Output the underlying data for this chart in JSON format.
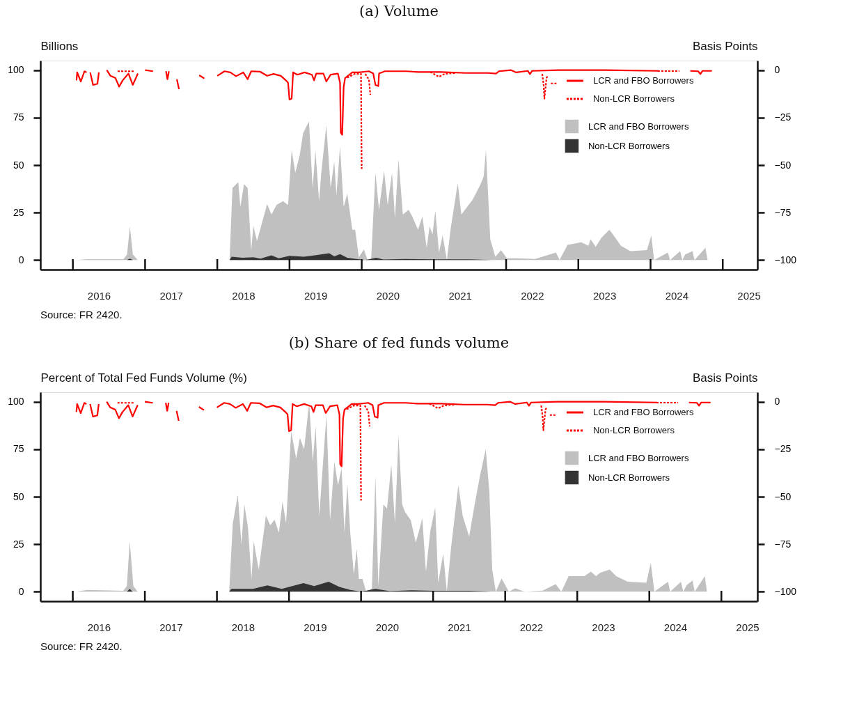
{
  "chart_data": [
    {
      "type": "area",
      "title": "(a) Volume",
      "ylabel": "Billions",
      "y2label": "Basis Points",
      "annotations": [
        "Source: FR 2420."
      ],
      "xlim": [
        2015.55,
        2025.48
      ],
      "ylim": [
        -5,
        105
      ],
      "y2lim": [
        -105,
        5
      ],
      "yticks": [
        0,
        25,
        50,
        75,
        100
      ],
      "y2ticks": [
        -100,
        -75,
        -50,
        -25,
        0
      ],
      "xticks": [
        {
          "value": 2016,
          "label": null
        },
        {
          "value": 2017,
          "label": null
        },
        {
          "value": 2018,
          "label": null
        },
        {
          "value": 2019,
          "label": null
        },
        {
          "value": 2020,
          "label": null
        },
        {
          "value": 2021,
          "label": null
        },
        {
          "value": 2022,
          "label": null
        },
        {
          "value": 2023,
          "label": null
        },
        {
          "value": 2024,
          "label": null
        },
        {
          "value": 2025,
          "label": null
        },
        {
          "value": 2016.36,
          "label": "2016"
        },
        {
          "value": 2017.36,
          "label": "2017"
        },
        {
          "value": 2018.36,
          "label": "2018"
        },
        {
          "value": 2019.36,
          "label": "2019"
        },
        {
          "value": 2020.36,
          "label": "2020"
        },
        {
          "value": 2021.36,
          "label": "2021"
        },
        {
          "value": 2022.36,
          "label": "2022"
        },
        {
          "value": 2023.36,
          "label": "2023"
        },
        {
          "value": 2024.36,
          "label": "2024"
        },
        {
          "value": 2025.36,
          "label": "2025"
        }
      ],
      "grid": false,
      "legend": "top right",
      "series": [
        {
          "name": "LCR and FBO Borrowers",
          "type": "area",
          "color": "#c0c0c0",
          "x": [
            2016.05,
            2016.2,
            2016.7,
            2016.75,
            2016.79,
            2016.83,
            2016.9,
            2018.17,
            2018.21,
            2018.29,
            2018.32,
            2018.37,
            2018.42,
            2018.47,
            2018.5,
            2018.55,
            2018.69,
            2018.75,
            2018.82,
            2018.91,
            2018.98,
            2019.03,
            2019.08,
            2019.14,
            2019.19,
            2019.27,
            2019.32,
            2019.36,
            2019.41,
            2019.44,
            2019.51,
            2019.57,
            2019.62,
            2019.65,
            2019.7,
            2019.75,
            2019.8,
            2019.87,
            2019.91,
            2019.96,
            2020.03,
            2020.08,
            2020.13,
            2020.19,
            2020.24,
            2020.31,
            2020.36,
            2020.42,
            2020.46,
            2020.51,
            2020.57,
            2020.65,
            2020.7,
            2020.78,
            2020.84,
            2020.9,
            2020.94,
            2020.98,
            2021.02,
            2021.07,
            2021.12,
            2021.18,
            2021.23,
            2021.33,
            2021.38,
            2021.54,
            2021.64,
            2021.69,
            2021.72,
            2021.75,
            2021.78,
            2021.85,
            2021.93,
            2022.01,
            2022.14,
            2022.4,
            2022.69,
            2022.74,
            2022.85,
            2023.04,
            2023.14,
            2023.17,
            2023.24,
            2023.32,
            2023.43,
            2023.5,
            2023.59,
            2023.72,
            2023.95,
            2024.01,
            2024.05,
            2024.24,
            2024.27,
            2024.41,
            2024.44,
            2024.48,
            2024.58,
            2024.61,
            2024.76,
            2024.79,
            2024.85
          ],
          "values": [
            0,
            0.5,
            0.5,
            3,
            17.6,
            3,
            0,
            0,
            38,
            41,
            28,
            40,
            38,
            5,
            18,
            10,
            29.5,
            24,
            29,
            31,
            29,
            58,
            46,
            55,
            67,
            73,
            38,
            57.6,
            31,
            46,
            71,
            38,
            52,
            34,
            60,
            28,
            35,
            16,
            16,
            1.4,
            5.6,
            0.2,
            0,
            46,
            26.5,
            47,
            29,
            46,
            22,
            53,
            24,
            26.5,
            23,
            16,
            23,
            6.5,
            17.7,
            13.5,
            26,
            4,
            13,
            0,
            16,
            40.6,
            24,
            32,
            39.5,
            44,
            58,
            35,
            11,
            1.8,
            5.3,
            1,
            1,
            0.6,
            4,
            0,
            8,
            9.4,
            7.6,
            11,
            7,
            11.8,
            16,
            12.4,
            7.6,
            4.7,
            5.3,
            13,
            0,
            4,
            0,
            4.7,
            0,
            3,
            4.7,
            0,
            6.5,
            0,
            0
          ]
        },
        {
          "name": "Non-LCR Borrowers",
          "type": "area",
          "color": "#333333",
          "x": [
            2016.05,
            2016.75,
            2016.79,
            2016.83,
            2018.17,
            2018.2,
            2018.35,
            2018.5,
            2018.6,
            2018.75,
            2018.85,
            2019.0,
            2019.2,
            2019.35,
            2019.55,
            2019.62,
            2019.7,
            2019.8,
            2019.95,
            2020.05,
            2020.2,
            2020.3,
            2020.6,
            2021.0,
            2021.5,
            2021.8,
            2024.85
          ],
          "values": [
            0,
            0,
            0.8,
            0,
            0,
            1.8,
            1.2,
            1.5,
            0.8,
            2.5,
            1,
            2.2,
            1.8,
            2.5,
            3.6,
            2,
            3.2,
            1.2,
            0.5,
            0,
            1.2,
            0.3,
            0.6,
            0.4,
            0.4,
            0,
            0
          ]
        },
        {
          "name": "LCR and FBO Borrowers",
          "type": "line",
          "axis": "y2",
          "color": "#ff0000",
          "line_style": "solid",
          "x": [
            2016.05,
            2016.06,
            2016.11,
            2016.16,
            2016.19,
            2016.21,
            2016.24,
            2016.28,
            2016.34,
            2016.36,
            2016.41,
            2016.47,
            2016.52,
            2016.59,
            2016.64,
            2016.69,
            2016.77,
            2016.83,
            2016.9,
            2016.95,
            2017.0,
            2017.11,
            2017.2,
            2017.29,
            2017.31,
            2017.33,
            2017.38,
            2017.44,
            2017.47,
            2017.6,
            2017.75,
            2017.82,
            2017.9,
            2018.0,
            2018.1,
            2018.18,
            2018.26,
            2018.36,
            2018.42,
            2018.47,
            2018.59,
            2018.69,
            2018.78,
            2018.88,
            2018.95,
            2018.98,
            2019.0,
            2019.03,
            2019.05,
            2019.11,
            2019.21,
            2019.31,
            2019.34,
            2019.37,
            2019.47,
            2019.51,
            2019.57,
            2019.67,
            2019.7,
            2019.71,
            2019.73,
            2019.75,
            2019.77,
            2019.87,
            2019.96,
            2020.1,
            2020.16,
            2020.19,
            2020.23,
            2020.24,
            2020.32,
            2020.62,
            2020.78,
            2021.1,
            2021.43,
            2021.75,
            2021.86,
            2021.9,
            2022.07,
            2022.14,
            2022.3,
            2022.33,
            2022.36,
            2022.72,
            2023.37,
            2024.11,
            2024.2,
            2024.55,
            2024.66,
            2024.69,
            2024.72,
            2024.85
          ],
          "values": [
            -5.4,
            -1.2,
            -6,
            -0.6,
            -1.2,
            null,
            -1.2,
            -7.8,
            -7.2,
            -1.2,
            null,
            0,
            -3,
            -4.2,
            -8.7,
            -5.4,
            -1.8,
            -7.8,
            -1.8,
            null,
            0,
            -0.6,
            null,
            -0.6,
            -4.8,
            -0.6,
            null,
            -4.8,
            -10,
            null,
            -2.7,
            -4.4,
            null,
            -3,
            -0.6,
            -1.2,
            -3.2,
            -1.2,
            -4.8,
            -0.6,
            -0.8,
            -3,
            -2,
            -3,
            -5.4,
            -6.6,
            -15.5,
            -15,
            -1.2,
            -2.4,
            -1.2,
            -2.4,
            -5.4,
            -1.8,
            -1.8,
            -6,
            -2.4,
            -1.8,
            -6.6,
            -32.9,
            -34,
            -9,
            -4.2,
            -1.2,
            -1.2,
            -0.6,
            -1.8,
            -7.8,
            -8.4,
            -1.8,
            -0.6,
            -0.6,
            -1,
            -1,
            -1.5,
            -1.5,
            -1.8,
            -0.6,
            0,
            -1.2,
            -0.4,
            -2.1,
            -0.4,
            0,
            0,
            -0.4,
            null,
            -0.4,
            -0.6,
            -2.1,
            -0.4,
            -0.4
          ]
        },
        {
          "name": "Non-LCR Borrowers",
          "type": "line",
          "axis": "y2",
          "color": "#fe0000",
          "line_style": "dashed",
          "x": [
            2016.62,
            2016.85,
            2016.9,
            2019.8,
            2019.9,
            2019.99,
            2020.0,
            2020.02,
            2020.05,
            2020.1,
            2020.12,
            2020.15,
            2020.95,
            2021.07,
            2021.15,
            2021.3,
            2021.4,
            2022.5,
            2022.52,
            2022.53,
            2022.56,
            2022.58,
            2022.6,
            2022.62,
            2022.7,
            2022.75,
            2024.1,
            2024.4
          ],
          "values": [
            -0.6,
            -0.6,
            null,
            -4,
            -2,
            -2,
            -52,
            null,
            -2,
            -5,
            -13,
            null,
            -1,
            -3.5,
            -2,
            -1.5,
            null,
            -2,
            -8,
            -15,
            -4,
            -3,
            null,
            -7,
            -7,
            null,
            -0.5,
            -0.5
          ]
        }
      ]
    },
    {
      "type": "area",
      "title": "(b) Share of fed funds volume",
      "ylabel": "Percent of Total Fed Funds Volume (%)",
      "y2label": "Basis Points",
      "annotations": [
        "Source: FR 2420."
      ],
      "xlim": [
        2015.55,
        2025.5
      ],
      "ylim": [
        -5,
        105
      ],
      "y2lim": [
        -105,
        5
      ],
      "yticks": [
        0,
        25,
        50,
        75,
        100
      ],
      "y2ticks": [
        -100,
        -75,
        -50,
        -25,
        0
      ],
      "xticks": [
        {
          "value": 2016,
          "label": null
        },
        {
          "value": 2017,
          "label": null
        },
        {
          "value": 2018,
          "label": null
        },
        {
          "value": 2019,
          "label": null
        },
        {
          "value": 2020,
          "label": null
        },
        {
          "value": 2021,
          "label": null
        },
        {
          "value": 2022,
          "label": null
        },
        {
          "value": 2023,
          "label": null
        },
        {
          "value": 2024,
          "label": null
        },
        {
          "value": 2025,
          "label": null
        },
        {
          "value": 2016.36,
          "label": "2016"
        },
        {
          "value": 2017.36,
          "label": "2017"
        },
        {
          "value": 2018.36,
          "label": "2018"
        },
        {
          "value": 2019.36,
          "label": "2019"
        },
        {
          "value": 2020.36,
          "label": "2020"
        },
        {
          "value": 2021.36,
          "label": "2021"
        },
        {
          "value": 2022.36,
          "label": "2022"
        },
        {
          "value": 2023.36,
          "label": "2023"
        },
        {
          "value": 2024.36,
          "label": "2024"
        },
        {
          "value": 2025.36,
          "label": "2025"
        }
      ],
      "grid": false,
      "legend": "top right",
      "series": [
        {
          "name": "LCR and FBO Borrowers",
          "type": "area",
          "color": "#c0c0c0",
          "x": [
            2016.05,
            2016.2,
            2016.7,
            2016.75,
            2016.79,
            2016.84,
            2016.9,
            2018.17,
            2018.22,
            2018.29,
            2018.34,
            2018.38,
            2018.43,
            2018.48,
            2018.51,
            2018.58,
            2018.68,
            2018.74,
            2018.8,
            2018.86,
            2018.91,
            2018.96,
            2019.03,
            2019.1,
            2019.15,
            2019.21,
            2019.28,
            2019.33,
            2019.37,
            2019.42,
            2019.47,
            2019.52,
            2019.57,
            2019.63,
            2019.68,
            2019.73,
            2019.77,
            2019.81,
            2019.85,
            2019.9,
            2019.94,
            2019.97,
            2020.02,
            2020.07,
            2020.15,
            2020.2,
            2020.24,
            2020.31,
            2020.36,
            2020.42,
            2020.47,
            2020.52,
            2020.57,
            2020.61,
            2020.69,
            2020.76,
            2020.85,
            2020.9,
            2020.96,
            2021.03,
            2021.07,
            2021.14,
            2021.19,
            2021.25,
            2021.35,
            2021.41,
            2021.5,
            2021.57,
            2021.65,
            2021.73,
            2021.78,
            2021.82,
            2021.87,
            2021.95,
            2022.05,
            2022.14,
            2022.27,
            2022.52,
            2022.7,
            2022.78,
            2022.88,
            2023.1,
            2023.19,
            2023.26,
            2023.32,
            2023.45,
            2023.54,
            2023.7,
            2023.96,
            2024.02,
            2024.07,
            2024.26,
            2024.29,
            2024.44,
            2024.47,
            2024.52,
            2024.6,
            2024.63,
            2024.77,
            2024.8,
            2024.88
          ],
          "values": [
            0,
            1,
            0.5,
            3,
            26.5,
            3,
            0,
            0,
            36,
            51,
            25,
            46,
            34,
            6.7,
            26.5,
            11.6,
            40,
            35,
            38,
            31,
            47.5,
            36,
            84.5,
            70,
            81,
            75,
            99.5,
            68.5,
            87,
            40,
            67,
            93,
            37.6,
            68.5,
            56,
            65,
            31,
            57,
            31,
            9,
            22.7,
            6.7,
            6.7,
            0,
            1.7,
            61,
            3,
            46,
            43.8,
            67,
            36,
            82,
            46,
            42,
            37.6,
            25.8,
            38.7,
            10.6,
            31.7,
            44.6,
            4.7,
            20,
            0,
            23.5,
            56,
            40,
            29,
            44.6,
            61,
            75,
            52.8,
            11.7,
            0,
            7,
            0,
            1.8,
            0,
            0.6,
            4,
            0,
            8.2,
            8.2,
            10.6,
            8.2,
            10,
            11.7,
            8.2,
            5.3,
            4.7,
            15.3,
            0,
            5.3,
            0,
            5.3,
            0,
            3.5,
            5.9,
            0,
            8.2,
            0,
            0
          ]
        },
        {
          "name": "Non-LCR Borrowers",
          "type": "area",
          "color": "#333333",
          "x": [
            2016.05,
            2016.75,
            2016.79,
            2016.83,
            2018.17,
            2018.2,
            2018.5,
            2018.7,
            2018.9,
            2019.0,
            2019.2,
            2019.35,
            2019.55,
            2019.7,
            2019.85,
            2020.0,
            2020.2,
            2020.4,
            2020.7,
            2021.0,
            2021.5,
            2021.8,
            2024.88
          ],
          "values": [
            0,
            0,
            1.5,
            0,
            0,
            1.5,
            1.5,
            3.3,
            1.5,
            2.5,
            4.5,
            3,
            5.3,
            2.5,
            1,
            0,
            1.5,
            0.3,
            0.8,
            0.5,
            0.5,
            0,
            0
          ]
        },
        {
          "name": "LCR and FBO Borrowers",
          "type": "line",
          "axis": "y2",
          "color": "#ff0000",
          "line_style": "solid",
          "x": [
            2016.05,
            2016.06,
            2016.11,
            2016.16,
            2016.19,
            2016.21,
            2016.24,
            2016.28,
            2016.34,
            2016.36,
            2016.41,
            2016.47,
            2016.52,
            2016.59,
            2016.64,
            2016.69,
            2016.77,
            2016.83,
            2016.9,
            2016.95,
            2017.0,
            2017.11,
            2017.2,
            2017.29,
            2017.31,
            2017.33,
            2017.38,
            2017.44,
            2017.47,
            2017.6,
            2017.75,
            2017.82,
            2017.9,
            2018.0,
            2018.1,
            2018.18,
            2018.26,
            2018.36,
            2018.42,
            2018.47,
            2018.59,
            2018.69,
            2018.78,
            2018.88,
            2018.95,
            2018.98,
            2019.0,
            2019.03,
            2019.05,
            2019.11,
            2019.21,
            2019.31,
            2019.34,
            2019.37,
            2019.47,
            2019.51,
            2019.57,
            2019.67,
            2019.7,
            2019.71,
            2019.73,
            2019.75,
            2019.77,
            2019.87,
            2019.96,
            2020.1,
            2020.16,
            2020.19,
            2020.23,
            2020.24,
            2020.32,
            2020.62,
            2020.78,
            2021.1,
            2021.43,
            2021.75,
            2021.86,
            2021.9,
            2022.07,
            2022.14,
            2022.3,
            2022.33,
            2022.36,
            2022.72,
            2023.37,
            2024.11,
            2024.2,
            2024.55,
            2024.66,
            2024.69,
            2024.72,
            2024.85
          ],
          "values": [
            -5.4,
            -1.2,
            -6,
            -0.6,
            -1.2,
            null,
            -1.2,
            -7.8,
            -7.2,
            -1.2,
            null,
            0,
            -3,
            -4.2,
            -8.7,
            -5.4,
            -1.8,
            -7.8,
            -1.8,
            null,
            0,
            -0.6,
            null,
            -0.6,
            -4.8,
            -0.6,
            null,
            -4.8,
            -10,
            null,
            -2.7,
            -4.4,
            null,
            -3,
            -0.6,
            -1.2,
            -3.2,
            -1.2,
            -4.8,
            -0.6,
            -0.8,
            -3,
            -2,
            -3,
            -5.4,
            -6.6,
            -15.5,
            -15,
            -1.2,
            -2.4,
            -1.2,
            -2.4,
            -5.4,
            -1.8,
            -1.8,
            -6,
            -2.4,
            -1.8,
            -6.6,
            -32.9,
            -34,
            -9,
            -4.2,
            -1.2,
            -1.2,
            -0.6,
            -1.8,
            -7.8,
            -8.4,
            -1.8,
            -0.6,
            -0.6,
            -1,
            -1,
            -1.5,
            -1.5,
            -1.8,
            -0.6,
            0,
            -1.2,
            -0.4,
            -2.1,
            -0.4,
            0,
            0,
            -0.4,
            null,
            -0.4,
            -0.6,
            -2.1,
            -0.4,
            -0.4
          ]
        },
        {
          "name": "Non-LCR Borrowers",
          "type": "line",
          "axis": "y2",
          "color": "#fe0000",
          "line_style": "dashed",
          "x": [
            2016.62,
            2016.85,
            2016.9,
            2019.8,
            2019.9,
            2019.99,
            2020.0,
            2020.02,
            2020.05,
            2020.1,
            2020.12,
            2020.15,
            2020.95,
            2021.07,
            2021.15,
            2021.3,
            2021.4,
            2022.5,
            2022.52,
            2022.53,
            2022.56,
            2022.58,
            2022.6,
            2022.62,
            2022.7,
            2022.75,
            2024.1,
            2024.4
          ],
          "values": [
            -0.6,
            -0.6,
            null,
            -4,
            -2,
            -2,
            -52,
            null,
            -2,
            -5,
            -13,
            null,
            -1,
            -3.5,
            -2,
            -1.5,
            null,
            -2,
            -8,
            -15,
            -4,
            -3,
            null,
            -7,
            -7,
            null,
            -0.5,
            -0.5
          ]
        }
      ]
    }
  ]
}
